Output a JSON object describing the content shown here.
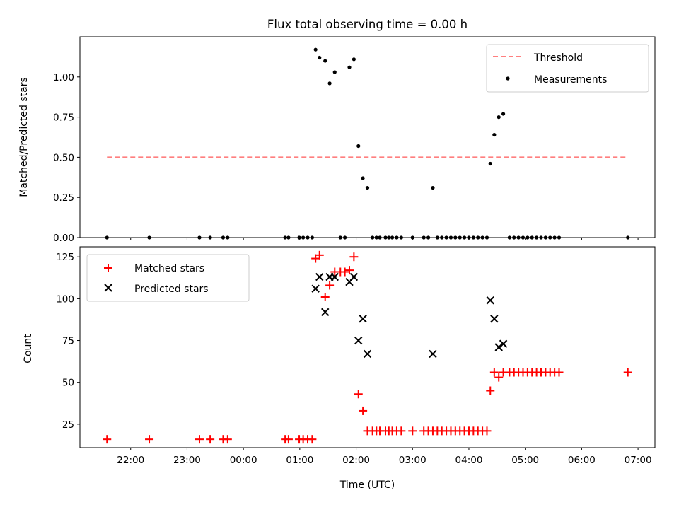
{
  "chart_data": [
    {
      "type": "scatter",
      "title": "Flux total observing time = 0.00 h",
      "xlabel": "",
      "ylabel": "Matched/Predicted stars",
      "xlim": [
        21.1,
        31.3
      ],
      "ylim": [
        0,
        1.25
      ],
      "yticks": [
        0.0,
        0.25,
        0.5,
        0.75,
        1.0
      ],
      "ytick_labels": [
        "0.00",
        "0.25",
        "0.50",
        "0.75",
        "1.00"
      ],
      "grid": false,
      "legend_position": "top-right",
      "threshold": {
        "name": "Threshold",
        "y": 0.5,
        "x_range": [
          21.58,
          30.82
        ],
        "color": "#ff7f7f",
        "style": "dashed"
      },
      "series": [
        {
          "name": "Measurements",
          "marker": "dot",
          "color": "#000000",
          "x": [
            21.58,
            22.33,
            23.22,
            23.41,
            23.64,
            23.72,
            24.74,
            24.8,
            24.99,
            25.06,
            25.14,
            25.22,
            25.28,
            25.35,
            25.45,
            25.53,
            25.62,
            25.72,
            25.8,
            25.88,
            25.96,
            26.04,
            26.12,
            26.2,
            26.29,
            26.36,
            26.42,
            26.52,
            26.58,
            26.64,
            26.72,
            26.8,
            27.0,
            27.2,
            27.28,
            27.36,
            27.44,
            27.52,
            27.6,
            27.68,
            27.76,
            27.84,
            27.92,
            28.0,
            28.08,
            28.16,
            28.24,
            28.32,
            28.38,
            28.45,
            28.53,
            28.61,
            28.72,
            28.8,
            28.88,
            28.96,
            29.04,
            29.12,
            29.2,
            29.28,
            29.36,
            29.44,
            29.52,
            29.6,
            30.82
          ],
          "y": [
            0.0,
            0.0,
            0.0,
            0.0,
            0.0,
            0.0,
            0.0,
            0.0,
            0.0,
            0.0,
            0.0,
            0.0,
            1.17,
            1.12,
            1.1,
            0.96,
            1.03,
            0.0,
            0.0,
            1.06,
            1.11,
            0.57,
            0.37,
            0.31,
            0.0,
            0.0,
            0.0,
            0.0,
            0.0,
            0.0,
            0.0,
            0.0,
            0.0,
            0.0,
            0.0,
            0.31,
            0.0,
            0.0,
            0.0,
            0.0,
            0.0,
            0.0,
            0.0,
            0.0,
            0.0,
            0.0,
            0.0,
            0.0,
            0.46,
            0.64,
            0.75,
            0.77,
            0.0,
            0.0,
            0.0,
            0.0,
            0.0,
            0.0,
            0.0,
            0.0,
            0.0,
            0.0,
            0.0,
            0.0,
            0.0
          ]
        }
      ]
    },
    {
      "type": "scatter",
      "title": "",
      "xlabel": "Time (UTC)",
      "ylabel": "Count",
      "xlim": [
        21.1,
        31.3
      ],
      "ylim": [
        11,
        131
      ],
      "yticks": [
        25,
        50,
        75,
        100,
        125
      ],
      "ytick_labels": [
        "25",
        "50",
        "75",
        "100",
        "125"
      ],
      "xticks": [
        22,
        23,
        24,
        25,
        26,
        27,
        28,
        29,
        30,
        31
      ],
      "xtick_labels": [
        "22:00",
        "23:00",
        "00:00",
        "01:00",
        "02:00",
        "03:00",
        "04:00",
        "05:00",
        "06:00",
        "07:00"
      ],
      "grid": false,
      "legend_position": "top-left",
      "series": [
        {
          "name": "Matched stars",
          "marker": "plus",
          "color": "#ff0000",
          "x": [
            21.58,
            22.33,
            23.22,
            23.41,
            23.64,
            23.72,
            24.74,
            24.8,
            24.99,
            25.06,
            25.14,
            25.22,
            25.28,
            25.35,
            25.45,
            25.53,
            25.62,
            25.72,
            25.8,
            25.88,
            25.96,
            26.04,
            26.12,
            26.2,
            26.29,
            26.36,
            26.42,
            26.52,
            26.58,
            26.64,
            26.72,
            26.8,
            27.0,
            27.2,
            27.28,
            27.36,
            27.44,
            27.52,
            27.6,
            27.68,
            27.76,
            27.84,
            27.92,
            28.0,
            28.08,
            28.16,
            28.24,
            28.32,
            28.38,
            28.45,
            28.53,
            28.61,
            28.72,
            28.8,
            28.88,
            28.96,
            29.04,
            29.12,
            29.2,
            29.28,
            29.36,
            29.44,
            29.52,
            29.6,
            30.82
          ],
          "y": [
            16,
            16,
            16,
            16,
            16,
            16,
            16,
            16,
            16,
            16,
            16,
            16,
            124,
            126,
            101,
            108,
            116,
            116,
            116,
            117,
            125,
            43,
            33,
            21,
            21,
            21,
            21,
            21,
            21,
            21,
            21,
            21,
            21,
            21,
            21,
            21,
            21,
            21,
            21,
            21,
            21,
            21,
            21,
            21,
            21,
            21,
            21,
            21,
            45,
            56,
            53,
            56,
            56,
            56,
            56,
            56,
            56,
            56,
            56,
            56,
            56,
            56,
            56,
            56,
            56
          ]
        },
        {
          "name": "Predicted stars",
          "marker": "x",
          "color": "#000000",
          "x": [
            25.28,
            25.35,
            25.45,
            25.53,
            25.62,
            25.88,
            25.96,
            26.04,
            26.12,
            26.2,
            27.36,
            28.38,
            28.45,
            28.53,
            28.61
          ],
          "y": [
            106,
            113,
            92,
            113,
            113,
            110,
            113,
            75,
            88,
            67,
            67,
            99,
            88,
            71,
            73
          ]
        }
      ]
    }
  ]
}
